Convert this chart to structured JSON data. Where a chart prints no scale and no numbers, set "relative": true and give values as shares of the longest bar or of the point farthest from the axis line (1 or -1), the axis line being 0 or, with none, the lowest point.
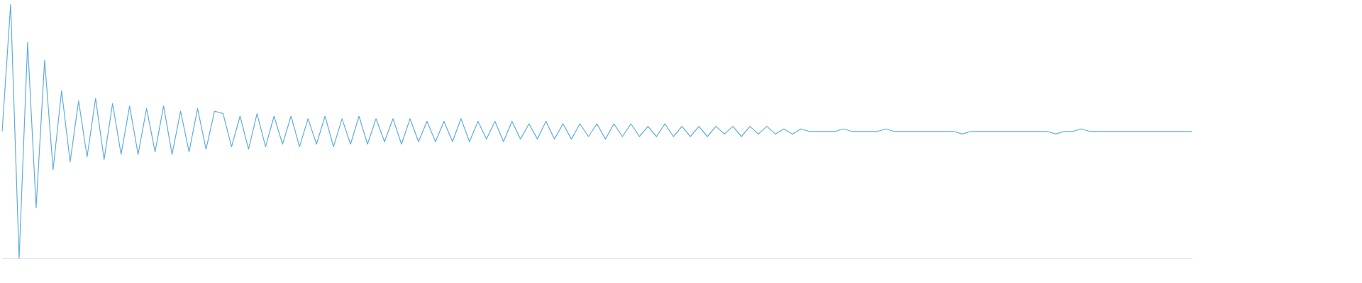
{
  "chart_data": {
    "type": "line",
    "relative": true,
    "legend": false,
    "marker": "none",
    "categories": [
      null,
      null,
      null,
      null,
      null,
      null,
      null,
      null,
      null,
      null,
      null,
      null,
      null,
      null,
      null,
      null,
      null,
      null,
      null,
      null,
      null,
      null,
      null,
      null,
      null,
      null,
      null,
      null,
      null,
      null,
      null,
      null,
      null,
      null,
      null,
      null,
      null,
      null,
      null,
      null,
      null,
      null,
      null,
      null,
      null,
      null,
      null,
      null,
      null,
      null,
      null,
      null,
      null,
      null,
      null,
      null,
      null,
      null,
      null,
      null,
      null,
      null,
      null,
      null,
      null,
      null,
      null,
      null,
      null,
      null,
      null,
      null,
      null,
      null,
      null,
      null,
      null,
      null,
      null,
      null,
      null,
      null,
      null,
      null,
      null,
      null,
      null,
      null,
      null,
      null,
      null,
      null,
      null,
      null,
      null,
      null,
      null,
      null,
      null,
      null,
      null,
      null,
      null,
      null,
      null,
      null,
      null,
      null,
      null,
      null,
      null,
      null,
      null,
      null,
      null,
      null,
      null,
      null,
      null,
      null,
      null,
      null,
      null,
      null,
      null,
      null,
      null,
      null,
      null,
      null,
      null,
      null,
      null,
      null,
      null,
      null,
      null,
      null,
      null,
      null,
      null
    ],
    "series": [
      {
        "color": "#5dade2",
        "values": [
          0.5,
          1,
          0,
          0.85,
          0.2,
          0.78,
          0.35,
          0.66,
          0.38,
          0.62,
          0.4,
          0.63,
          0.39,
          0.61,
          0.41,
          0.6,
          0.41,
          0.59,
          0.42,
          0.6,
          0.41,
          0.58,
          0.42,
          0.59,
          0.43,
          0.58,
          0.57,
          0.44,
          0.56,
          0.43,
          0.57,
          0.44,
          0.56,
          0.45,
          0.56,
          0.44,
          0.55,
          0.45,
          0.56,
          0.44,
          0.55,
          0.45,
          0.56,
          0.45,
          0.55,
          0.46,
          0.55,
          0.45,
          0.55,
          0.46,
          0.54,
          0.46,
          0.54,
          0.46,
          0.55,
          0.46,
          0.54,
          0.47,
          0.54,
          0.46,
          0.54,
          0.47,
          0.53,
          0.47,
          0.54,
          0.47,
          0.53,
          0.47,
          0.53,
          0.48,
          0.53,
          0.47,
          0.53,
          0.48,
          0.53,
          0.48,
          0.52,
          0.48,
          0.53,
          0.48,
          0.52,
          0.48,
          0.52,
          0.48,
          0.52,
          0.49,
          0.52,
          0.48,
          0.52,
          0.49,
          0.52,
          0.49,
          0.51,
          0.49,
          0.51,
          0.5,
          null,
          0.5,
          0.5,
          0.51,
          0.5,
          0.5,
          0.5,
          0.5,
          0.51,
          0.5,
          0.5,
          0.5,
          0.5,
          0.5,
          0.5,
          0.5,
          0.5,
          0.49,
          0.5,
          0.5,
          null,
          null,
          null,
          0.5,
          0.5,
          null,
          null,
          0.5,
          0.49,
          0.5,
          0.5,
          0.51,
          0.5,
          0.5,
          null,
          0.5,
          0.5,
          0.5,
          null,
          null,
          null,
          null,
          null,
          0.5,
          0.5
        ]
      }
    ]
  }
}
